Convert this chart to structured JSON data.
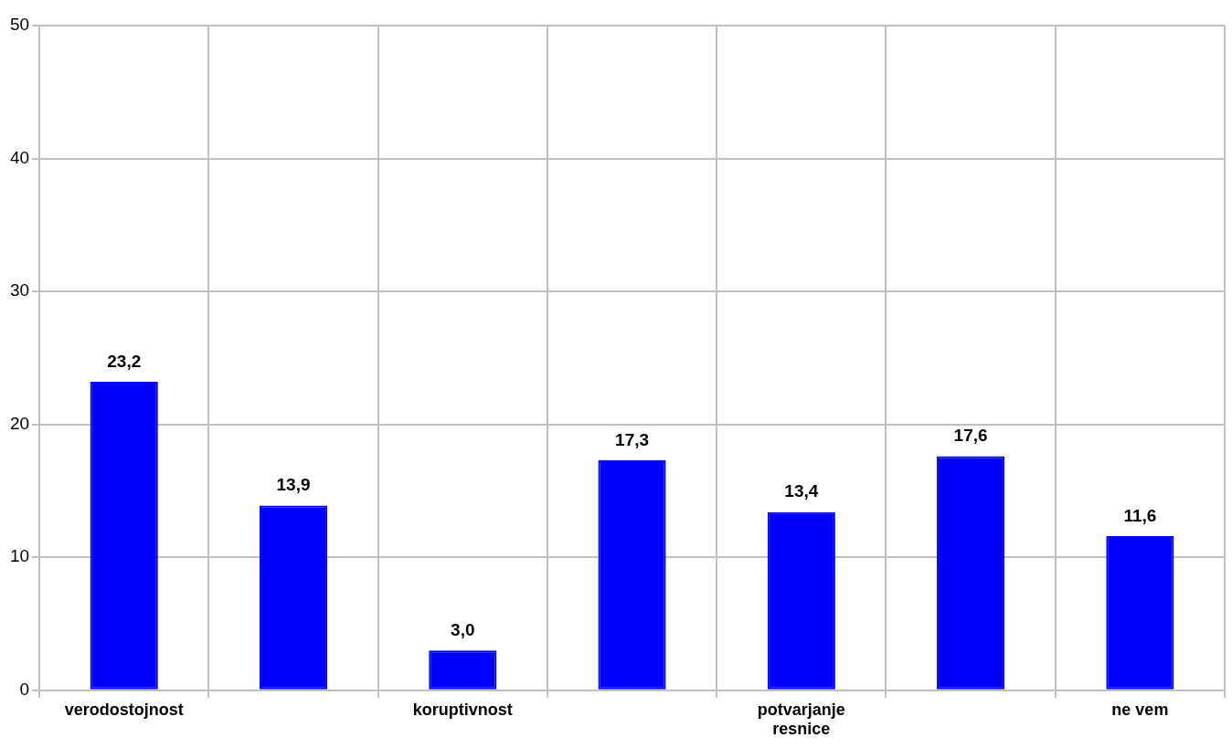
{
  "chart_data": {
    "type": "bar",
    "categories": [
      "verodostojnost",
      null,
      "koruptivnost",
      null,
      "potvarjanje resnice",
      null,
      "ne vem"
    ],
    "series": [
      {
        "color": "#0000ff",
        "values": [
          23.2,
          13.9,
          3.0,
          17.3,
          13.4,
          17.6,
          11.6
        ],
        "value_labels": [
          "23,2",
          "13,9",
          "3,0",
          "17,3",
          "13,4",
          "17,6",
          "11,6"
        ]
      }
    ],
    "ylim": [
      0,
      50
    ],
    "yticks": [
      0,
      10,
      20,
      30,
      40,
      50
    ],
    "grid": true,
    "legend": false
  }
}
